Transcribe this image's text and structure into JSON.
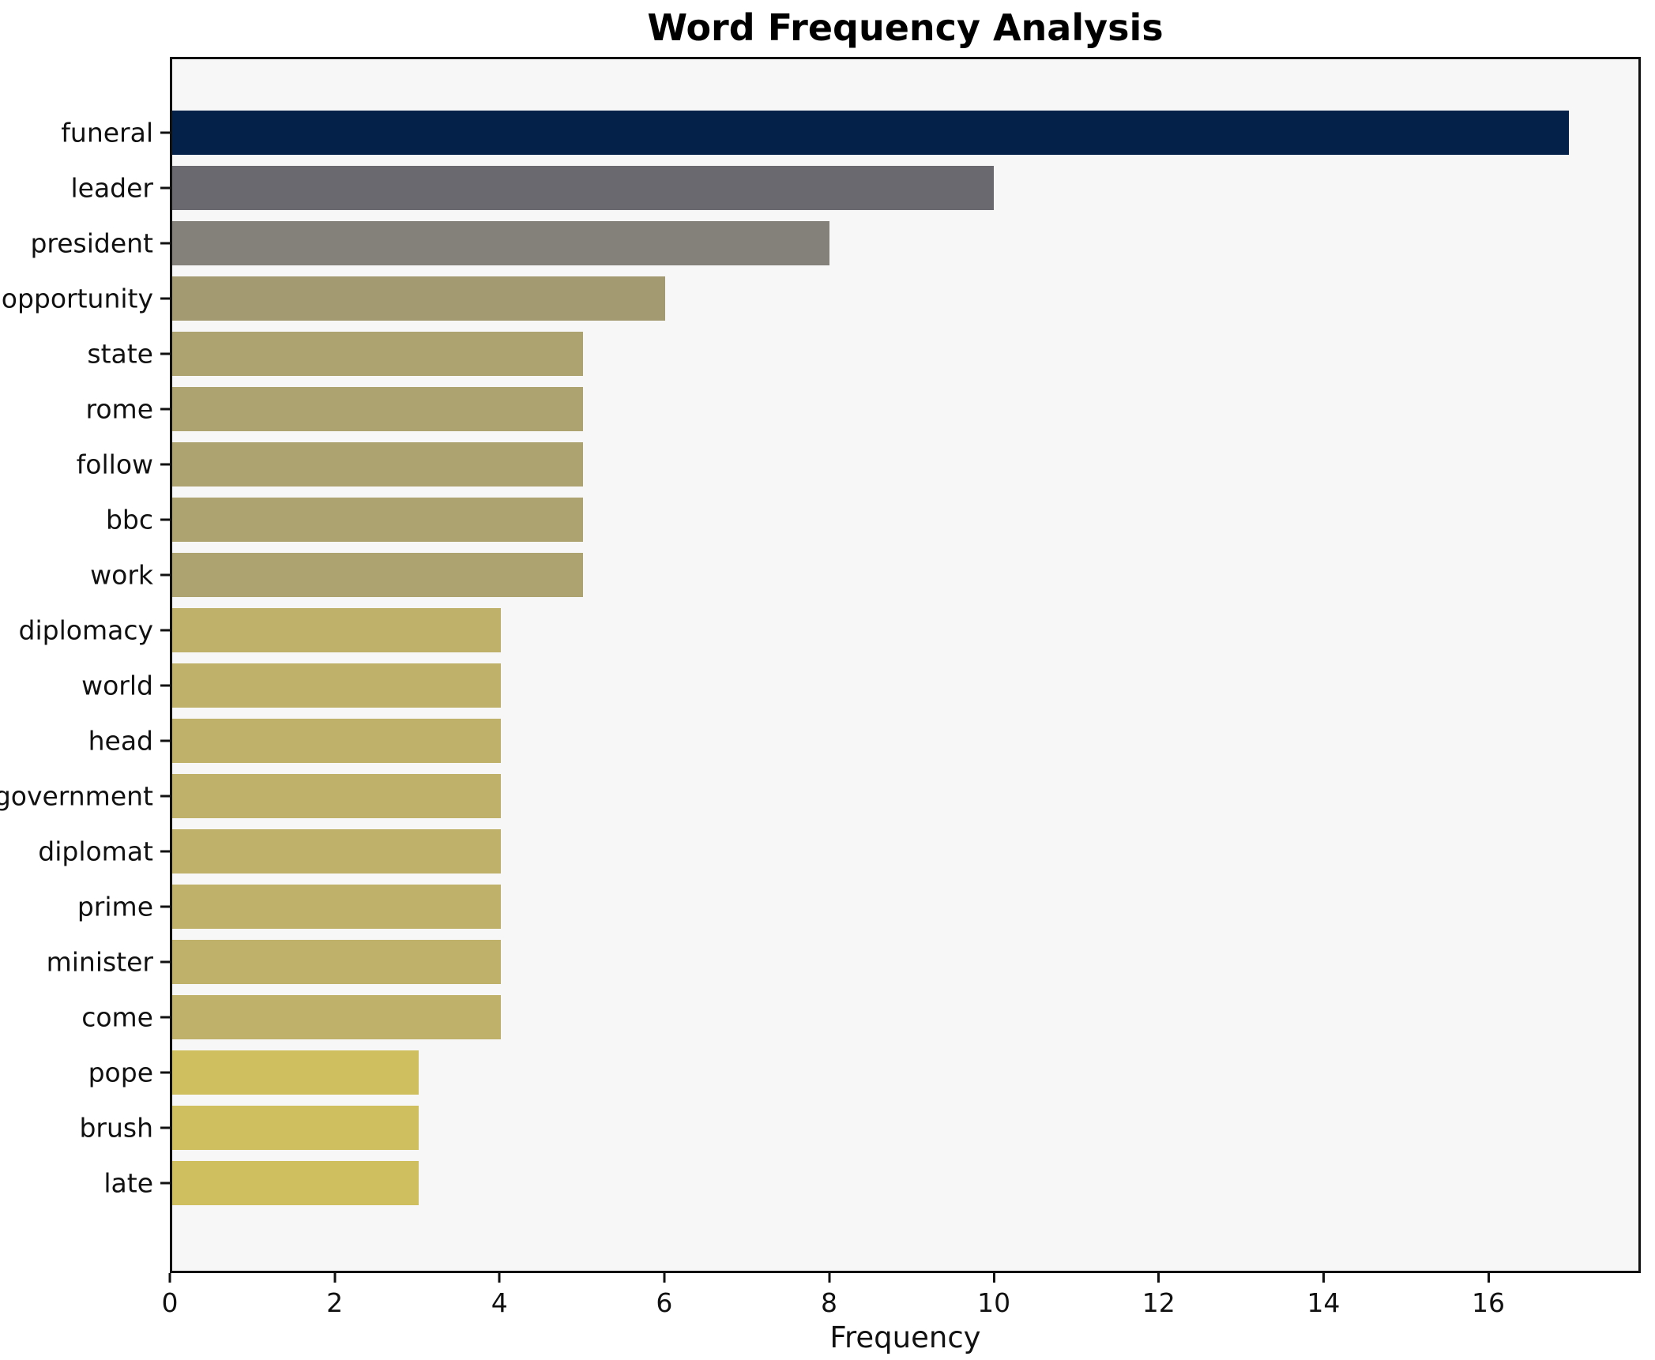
{
  "chart_data": {
    "type": "bar",
    "orientation": "horizontal",
    "title": "Word Frequency Analysis",
    "xlabel": "Frequency",
    "ylabel": "",
    "xlim": [
      0,
      17.85
    ],
    "x_ticks": [
      0,
      2,
      4,
      6,
      8,
      10,
      12,
      14,
      16
    ],
    "grid": false,
    "legend": "none",
    "plot_background": "#f7f7f7",
    "figure_background": "#ffffff",
    "spine_color": "#111111",
    "categories": [
      "funeral",
      "leader",
      "president",
      "opportunity",
      "state",
      "rome",
      "follow",
      "bbc",
      "work",
      "diplomacy",
      "world",
      "head",
      "government",
      "diplomat",
      "prime",
      "minister",
      "come",
      "pope",
      "brush",
      "late"
    ],
    "values": [
      17,
      10,
      8,
      6,
      5,
      5,
      5,
      5,
      5,
      4,
      4,
      4,
      4,
      4,
      4,
      4,
      4,
      3,
      3,
      3
    ],
    "bar_colors": [
      "#032149",
      "#6a696f",
      "#84817a",
      "#a39a71",
      "#ada371",
      "#ada371",
      "#ada371",
      "#ada371",
      "#ada371",
      "#bfb169",
      "#bfb169",
      "#bfb169",
      "#bfb169",
      "#bfb169",
      "#bfb169",
      "#bfb169",
      "#bfb169",
      "#cfbf5e",
      "#cfbf5e",
      "#cfbf5e"
    ]
  }
}
